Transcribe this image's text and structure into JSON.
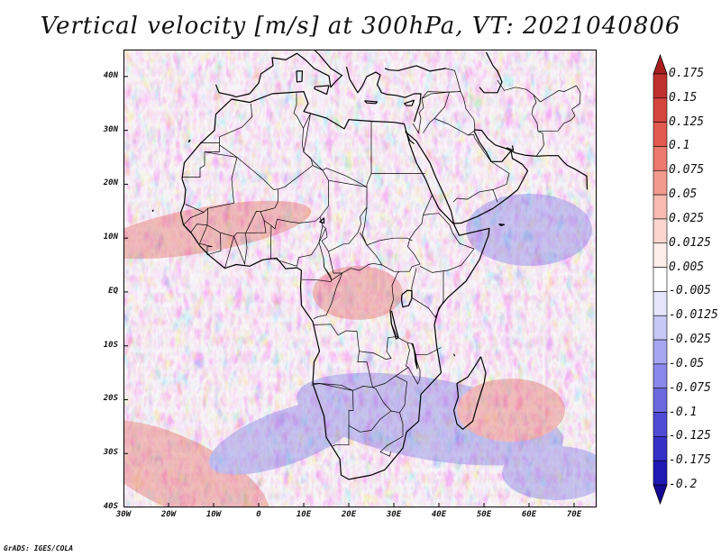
{
  "title": "Vertical velocity [m/s] at 300hPa, VT: 2021040806",
  "credit": "GrADS: IGES/COLA",
  "map": {
    "variable": "Vertical velocity",
    "level": "300hPa",
    "lat_range": [
      -40,
      45
    ],
    "lon_range": [
      -30,
      75
    ],
    "lat_ticks": [
      "40N",
      "30N",
      "20N",
      "10N",
      "EQ",
      "10S",
      "20S",
      "30S",
      "40S"
    ],
    "lon_ticks": [
      "30W",
      "20W",
      "10W",
      "0",
      "10E",
      "20E",
      "30E",
      "40E",
      "50E",
      "60E",
      "70E"
    ]
  },
  "colorbar": {
    "labels": [
      "0.175",
      "0.15",
      "0.125",
      "0.1",
      "0.075",
      "0.05",
      "0.025",
      "0.0125",
      "0.005",
      "-0.005",
      "-0.0125",
      "-0.025",
      "-0.05",
      "-0.075",
      "-0.1",
      "-0.125",
      "-0.175",
      "-0.2"
    ],
    "colors": [
      "#a81f1f",
      "#c0302c",
      "#d4453c",
      "#e25a50",
      "#ec7a6e",
      "#f29a8e",
      "#f7bbb1",
      "#fbd6cf",
      "#fdeeea",
      "#ffffff",
      "#e4e4fb",
      "#c8c8f6",
      "#a7a6f0",
      "#8a88ea",
      "#6c69e0",
      "#4f4bd6",
      "#3531c8",
      "#2119b4",
      "#140a95"
    ]
  },
  "colors": {
    "positive": "#e25a50",
    "negative": "#6c69e0",
    "coastline": "#000000"
  }
}
